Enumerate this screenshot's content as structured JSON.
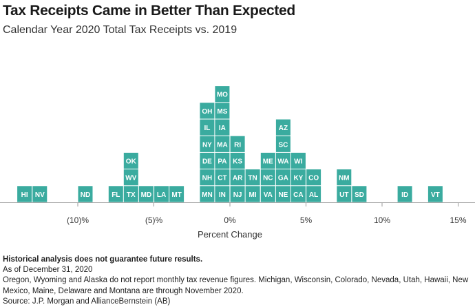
{
  "title": "Tax Receipts Came in Better Than Expected",
  "subtitle": "Calendar Year 2020 Total Tax Receipts vs. 2019",
  "colors": {
    "tile": "#3aab9f",
    "baseline": "#999999",
    "text": "#222222"
  },
  "chart_data": {
    "type": "bar",
    "style": "tile-histogram",
    "title": "Tax Receipts Came in Better Than Expected",
    "subtitle": "Calendar Year 2020 Total Tax Receipts vs. 2019",
    "xlabel": "Percent Change",
    "ylabel": "",
    "xlim": [
      -15,
      15
    ],
    "bin_width": 1,
    "x_ticks": [
      {
        "value": -10,
        "label": "(10)%"
      },
      {
        "value": -5,
        "label": "(5)%"
      },
      {
        "value": 0,
        "label": "0%"
      },
      {
        "value": 5,
        "label": "5%"
      },
      {
        "value": 10,
        "label": "10%"
      },
      {
        "value": 15,
        "label": "15%"
      }
    ],
    "bins": [
      {
        "x": -13.5,
        "states": [
          "HI"
        ]
      },
      {
        "x": -12.5,
        "states": [
          "NV"
        ]
      },
      {
        "x": -9.5,
        "states": [
          "ND"
        ]
      },
      {
        "x": -7.5,
        "states": [
          "FL"
        ]
      },
      {
        "x": -6.5,
        "states": [
          "TX",
          "WV",
          "OK"
        ]
      },
      {
        "x": -5.5,
        "states": [
          "MD"
        ]
      },
      {
        "x": -4.5,
        "states": [
          "LA"
        ]
      },
      {
        "x": -3.5,
        "states": [
          "MT"
        ]
      },
      {
        "x": -1.5,
        "states": [
          "MN",
          "NH",
          "DE",
          "NY",
          "IL",
          "OH"
        ]
      },
      {
        "x": -0.5,
        "states": [
          "IN",
          "CT",
          "PA",
          "MA",
          "IA",
          "MS",
          "MO"
        ]
      },
      {
        "x": 0.5,
        "states": [
          "NJ",
          "AR",
          "KS",
          "RI"
        ]
      },
      {
        "x": 1.5,
        "states": [
          "MI",
          "TN"
        ]
      },
      {
        "x": 2.5,
        "states": [
          "VA",
          "NC",
          "ME"
        ]
      },
      {
        "x": 3.5,
        "states": [
          "NE",
          "GA",
          "WA",
          "SC",
          "AZ"
        ]
      },
      {
        "x": 4.5,
        "states": [
          "CA",
          "KY",
          "WI"
        ]
      },
      {
        "x": 5.5,
        "states": [
          "AL",
          "CO"
        ]
      },
      {
        "x": 7.5,
        "states": [
          "UT",
          "NM"
        ]
      },
      {
        "x": 8.5,
        "states": [
          "SD"
        ]
      },
      {
        "x": 11.5,
        "states": [
          "ID"
        ]
      },
      {
        "x": 13.5,
        "states": [
          "VT"
        ]
      }
    ]
  },
  "notes": {
    "disclaimer": "Historical analysis does not guarantee future results.",
    "as_of": "As of December 31, 2020",
    "footnote": "Oregon, Wyoming and Alaska do not report monthly tax revenue figures. Michigan, Wisconsin, Colorado, Nevada, Utah, Hawaii, New Mexico, Maine, Delaware and Montana are through November 2020.",
    "source": "Source: J.P. Morgan and AllianceBernstein (AB)"
  }
}
